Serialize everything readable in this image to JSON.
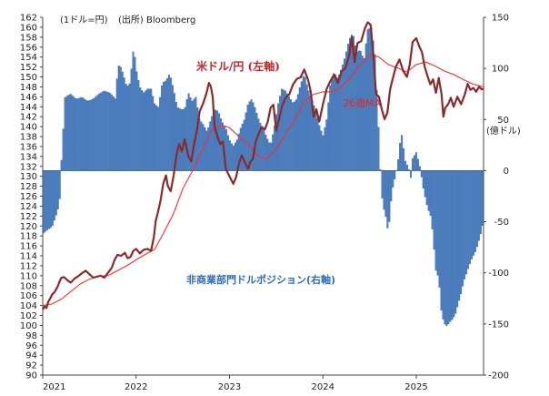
{
  "chart_data": {
    "type": "line",
    "notes": {
      "unit_left": "(1ドル=円)",
      "source": "(出所) Bloomberg",
      "unit_right": "(億ドル)"
    },
    "x_labels": [
      "2021",
      "2022",
      "2023",
      "2024",
      "2025"
    ],
    "x_range": [
      2021.0,
      2025.72
    ],
    "left_axis": {
      "min": 90,
      "max": 162,
      "step": 2
    },
    "right_axis": {
      "min": -200,
      "max": 150,
      "ticks": [
        150,
        100,
        50,
        0,
        -50,
        -100,
        -150,
        -200
      ]
    },
    "colors": {
      "usdjpy": "#8b2a2a",
      "ma": "#ff2a2a",
      "position": "#4a7fc4",
      "position_edge": "#2e5e9c"
    },
    "labels": {
      "usdjpy": "米ドル/円 (左軸)",
      "ma": "26週MA",
      "position": "非商業部門ドルポジション(右軸)"
    },
    "usdjpy": [
      [
        2021.0,
        103.2
      ],
      [
        2021.02,
        103.8
      ],
      [
        2021.04,
        103.5
      ],
      [
        2021.06,
        104.8
      ],
      [
        2021.08,
        105.4
      ],
      [
        2021.1,
        106.2
      ],
      [
        2021.13,
        106.8
      ],
      [
        2021.16,
        107.8
      ],
      [
        2021.18,
        108.8
      ],
      [
        2021.2,
        109.6
      ],
      [
        2021.23,
        109.7
      ],
      [
        2021.27,
        109.0
      ],
      [
        2021.3,
        108.6
      ],
      [
        2021.34,
        109.4
      ],
      [
        2021.38,
        109.9
      ],
      [
        2021.42,
        110.5
      ],
      [
        2021.46,
        111.0
      ],
      [
        2021.5,
        110.3
      ],
      [
        2021.54,
        109.6
      ],
      [
        2021.58,
        109.8
      ],
      [
        2021.62,
        110.0
      ],
      [
        2021.66,
        109.6
      ],
      [
        2021.7,
        110.6
      ],
      [
        2021.74,
        111.6
      ],
      [
        2021.77,
        113.2
      ],
      [
        2021.8,
        114.2
      ],
      [
        2021.84,
        114.0
      ],
      [
        2021.88,
        114.6
      ],
      [
        2021.91,
        113.5
      ],
      [
        2021.94,
        113.8
      ],
      [
        2021.97,
        115.0
      ],
      [
        2022.0,
        115.4
      ],
      [
        2022.04,
        114.5
      ],
      [
        2022.08,
        115.2
      ],
      [
        2022.12,
        115.4
      ],
      [
        2022.16,
        115.0
      ],
      [
        2022.19,
        117.8
      ],
      [
        2022.21,
        121.0
      ],
      [
        2022.23,
        122.5
      ],
      [
        2022.26,
        125.0
      ],
      [
        2022.29,
        128.5
      ],
      [
        2022.32,
        130.2
      ],
      [
        2022.34,
        128.0
      ],
      [
        2022.37,
        127.0
      ],
      [
        2022.4,
        130.0
      ],
      [
        2022.43,
        134.0
      ],
      [
        2022.46,
        136.5
      ],
      [
        2022.49,
        135.0
      ],
      [
        2022.52,
        137.5
      ],
      [
        2022.56,
        134.0
      ],
      [
        2022.59,
        133.0
      ],
      [
        2022.62,
        136.5
      ],
      [
        2022.65,
        139.0
      ],
      [
        2022.68,
        143.0
      ],
      [
        2022.72,
        144.8
      ],
      [
        2022.75,
        146.5
      ],
      [
        2022.78,
        148.8
      ],
      [
        2022.8,
        148.0
      ],
      [
        2022.82,
        146.0
      ],
      [
        2022.84,
        140.0
      ],
      [
        2022.87,
        138.0
      ],
      [
        2022.9,
        136.5
      ],
      [
        2022.93,
        137.0
      ],
      [
        2022.96,
        131.5
      ],
      [
        2023.0,
        130.0
      ],
      [
        2023.04,
        128.5
      ],
      [
        2023.07,
        129.8
      ],
      [
        2023.1,
        132.5
      ],
      [
        2023.13,
        134.2
      ],
      [
        2023.16,
        133.0
      ],
      [
        2023.2,
        131.5
      ],
      [
        2023.22,
        132.8
      ],
      [
        2023.25,
        133.5
      ],
      [
        2023.28,
        137.0
      ],
      [
        2023.31,
        138.5
      ],
      [
        2023.34,
        139.8
      ],
      [
        2023.38,
        139.5
      ],
      [
        2023.41,
        141.0
      ],
      [
        2023.44,
        143.8
      ],
      [
        2023.47,
        144.4
      ],
      [
        2023.5,
        139.2
      ],
      [
        2023.53,
        141.5
      ],
      [
        2023.56,
        144.0
      ],
      [
        2023.6,
        145.8
      ],
      [
        2023.64,
        146.5
      ],
      [
        2023.68,
        148.5
      ],
      [
        2023.72,
        149.6
      ],
      [
        2023.76,
        149.9
      ],
      [
        2023.8,
        151.5
      ],
      [
        2023.84,
        149.5
      ],
      [
        2023.87,
        147.0
      ],
      [
        2023.9,
        142.0
      ],
      [
        2023.93,
        143.5
      ],
      [
        2023.96,
        141.0
      ],
      [
        2024.0,
        144.5
      ],
      [
        2024.04,
        147.6
      ],
      [
        2024.08,
        149.2
      ],
      [
        2024.12,
        150.5
      ],
      [
        2024.16,
        148.8
      ],
      [
        2024.2,
        151.2
      ],
      [
        2024.24,
        151.7
      ],
      [
        2024.28,
        154.2
      ],
      [
        2024.31,
        158.0
      ],
      [
        2024.34,
        153.0
      ],
      [
        2024.37,
        156.8
      ],
      [
        2024.41,
        157.2
      ],
      [
        2024.45,
        159.8
      ],
      [
        2024.48,
        161.0
      ],
      [
        2024.51,
        160.5
      ],
      [
        2024.54,
        154.5
      ],
      [
        2024.57,
        146.5
      ],
      [
        2024.6,
        146.0
      ],
      [
        2024.63,
        143.5
      ],
      [
        2024.66,
        141.5
      ],
      [
        2024.69,
        142.8
      ],
      [
        2024.72,
        147.5
      ],
      [
        2024.75,
        149.8
      ],
      [
        2024.78,
        152.0
      ],
      [
        2024.82,
        153.5
      ],
      [
        2024.86,
        151.2
      ],
      [
        2024.9,
        150.0
      ],
      [
        2024.93,
        152.5
      ],
      [
        2024.96,
        157.0
      ],
      [
        2025.0,
        157.8
      ],
      [
        2025.03,
        156.2
      ],
      [
        2025.06,
        155.0
      ],
      [
        2025.09,
        152.0
      ],
      [
        2025.12,
        150.2
      ],
      [
        2025.15,
        148.5
      ],
      [
        2025.18,
        149.5
      ],
      [
        2025.21,
        146.8
      ],
      [
        2025.24,
        149.8
      ],
      [
        2025.27,
        146.5
      ],
      [
        2025.29,
        142.0
      ],
      [
        2025.31,
        143.8
      ],
      [
        2025.34,
        144.5
      ],
      [
        2025.37,
        145.8
      ],
      [
        2025.4,
        144.0
      ],
      [
        2025.44,
        146.0
      ],
      [
        2025.48,
        144.5
      ],
      [
        2025.52,
        146.5
      ],
      [
        2025.55,
        148.6
      ],
      [
        2025.58,
        147.4
      ],
      [
        2025.61,
        147.8
      ],
      [
        2025.64,
        147.0
      ],
      [
        2025.67,
        148.0
      ],
      [
        2025.7,
        147.5
      ],
      [
        2025.72,
        147.6
      ]
    ],
    "ma": [
      [
        2021.0,
        104.0
      ],
      [
        2021.1,
        104.3
      ],
      [
        2021.2,
        105.3
      ],
      [
        2021.3,
        106.8
      ],
      [
        2021.4,
        108.3
      ],
      [
        2021.5,
        109.3
      ],
      [
        2021.6,
        109.9
      ],
      [
        2021.7,
        110.0
      ],
      [
        2021.8,
        111.0
      ],
      [
        2021.9,
        112.0
      ],
      [
        2022.0,
        113.2
      ],
      [
        2022.1,
        114.3
      ],
      [
        2022.2,
        115.3
      ],
      [
        2022.3,
        118.8
      ],
      [
        2022.4,
        122.5
      ],
      [
        2022.5,
        127.5
      ],
      [
        2022.6,
        131.0
      ],
      [
        2022.7,
        135.0
      ],
      [
        2022.8,
        139.0
      ],
      [
        2022.9,
        140.3
      ],
      [
        2023.0,
        139.8
      ],
      [
        2023.1,
        138.0
      ],
      [
        2023.2,
        136.5
      ],
      [
        2023.3,
        134.0
      ],
      [
        2023.4,
        133.5
      ],
      [
        2023.5,
        135.5
      ],
      [
        2023.6,
        138.5
      ],
      [
        2023.7,
        141.5
      ],
      [
        2023.8,
        145.0
      ],
      [
        2023.9,
        146.5
      ],
      [
        2024.0,
        147.0
      ],
      [
        2024.1,
        147.0
      ],
      [
        2024.2,
        148.0
      ],
      [
        2024.3,
        150.0
      ],
      [
        2024.4,
        152.5
      ],
      [
        2024.5,
        154.5
      ],
      [
        2024.6,
        154.0
      ],
      [
        2024.7,
        152.5
      ],
      [
        2024.8,
        151.8
      ],
      [
        2024.9,
        151.0
      ],
      [
        2025.0,
        152.5
      ],
      [
        2025.1,
        153.0
      ],
      [
        2025.2,
        152.2
      ],
      [
        2025.3,
        151.2
      ],
      [
        2025.4,
        150.5
      ],
      [
        2025.5,
        149.5
      ],
      [
        2025.6,
        148.6
      ],
      [
        2025.72,
        148.0
      ]
    ],
    "positions": [
      [
        2021.0,
        -62
      ],
      [
        2021.05,
        -58
      ],
      [
        2021.1,
        -55
      ],
      [
        2021.15,
        -42
      ],
      [
        2021.18,
        -32
      ],
      [
        2021.2,
        8
      ],
      [
        2021.24,
        72
      ],
      [
        2021.3,
        75
      ],
      [
        2021.36,
        70
      ],
      [
        2021.42,
        72
      ],
      [
        2021.48,
        68
      ],
      [
        2021.54,
        70
      ],
      [
        2021.6,
        75
      ],
      [
        2021.66,
        78
      ],
      [
        2021.72,
        76
      ],
      [
        2021.78,
        70
      ],
      [
        2021.8,
        95
      ],
      [
        2021.82,
        105
      ],
      [
        2021.86,
        95
      ],
      [
        2021.9,
        82
      ],
      [
        2021.94,
        86
      ],
      [
        2021.96,
        115
      ],
      [
        2021.98,
        118
      ],
      [
        2022.0,
        100
      ],
      [
        2022.04,
        82
      ],
      [
        2022.08,
        76
      ],
      [
        2022.12,
        80
      ],
      [
        2022.16,
        80
      ],
      [
        2022.2,
        65
      ],
      [
        2022.24,
        62
      ],
      [
        2022.28,
        86
      ],
      [
        2022.32,
        88
      ],
      [
        2022.36,
        95
      ],
      [
        2022.4,
        80
      ],
      [
        2022.44,
        62
      ],
      [
        2022.48,
        60
      ],
      [
        2022.52,
        60
      ],
      [
        2022.56,
        76
      ],
      [
        2022.6,
        68
      ],
      [
        2022.64,
        72
      ],
      [
        2022.68,
        50
      ],
      [
        2022.72,
        45
      ],
      [
        2022.76,
        38
      ],
      [
        2022.8,
        50
      ],
      [
        2022.84,
        60
      ],
      [
        2022.88,
        58
      ],
      [
        2022.92,
        48
      ],
      [
        2022.96,
        42
      ],
      [
        2023.0,
        30
      ],
      [
        2023.04,
        24
      ],
      [
        2023.08,
        30
      ],
      [
        2023.12,
        42
      ],
      [
        2023.16,
        50
      ],
      [
        2023.2,
        66
      ],
      [
        2023.24,
        70
      ],
      [
        2023.28,
        60
      ],
      [
        2023.32,
        48
      ],
      [
        2023.36,
        42
      ],
      [
        2023.4,
        32
      ],
      [
        2023.44,
        25
      ],
      [
        2023.48,
        42
      ],
      [
        2023.52,
        65
      ],
      [
        2023.56,
        80
      ],
      [
        2023.6,
        78
      ],
      [
        2023.64,
        72
      ],
      [
        2023.68,
        66
      ],
      [
        2023.72,
        70
      ],
      [
        2023.76,
        84
      ],
      [
        2023.8,
        95
      ],
      [
        2023.84,
        80
      ],
      [
        2023.88,
        70
      ],
      [
        2023.92,
        60
      ],
      [
        2023.96,
        45
      ],
      [
        2024.0,
        34
      ],
      [
        2024.04,
        50
      ],
      [
        2024.08,
        85
      ],
      [
        2024.12,
        96
      ],
      [
        2024.16,
        90
      ],
      [
        2024.2,
        100
      ],
      [
        2024.24,
        112
      ],
      [
        2024.28,
        128
      ],
      [
        2024.32,
        135
      ],
      [
        2024.36,
        116
      ],
      [
        2024.4,
        118
      ],
      [
        2024.44,
        108
      ],
      [
        2024.48,
        138
      ],
      [
        2024.52,
        140
      ],
      [
        2024.56,
        112
      ],
      [
        2024.58,
        72
      ],
      [
        2024.6,
        35
      ],
      [
        2024.62,
        -10
      ],
      [
        2024.64,
        -34
      ],
      [
        2024.66,
        -40
      ],
      [
        2024.68,
        -48
      ],
      [
        2024.7,
        -62
      ],
      [
        2024.72,
        -40
      ],
      [
        2024.74,
        -20
      ],
      [
        2024.76,
        -12
      ],
      [
        2024.8,
        5
      ],
      [
        2024.82,
        22
      ],
      [
        2024.84,
        38
      ],
      [
        2024.86,
        25
      ],
      [
        2024.88,
        10
      ],
      [
        2024.92,
        2
      ],
      [
        2024.94,
        -8
      ],
      [
        2024.96,
        12
      ],
      [
        2025.0,
        18
      ],
      [
        2025.04,
        3
      ],
      [
        2025.08,
        -20
      ],
      [
        2025.12,
        -36
      ],
      [
        2025.16,
        -46
      ],
      [
        2025.18,
        -66
      ],
      [
        2025.21,
        -98
      ],
      [
        2025.24,
        -105
      ],
      [
        2025.27,
        -140
      ],
      [
        2025.3,
        -150
      ],
      [
        2025.33,
        -152
      ],
      [
        2025.36,
        -148
      ],
      [
        2025.39,
        -145
      ],
      [
        2025.42,
        -140
      ],
      [
        2025.45,
        -130
      ],
      [
        2025.48,
        -120
      ],
      [
        2025.51,
        -108
      ],
      [
        2025.54,
        -100
      ],
      [
        2025.57,
        -92
      ],
      [
        2025.6,
        -85
      ],
      [
        2025.63,
        -80
      ],
      [
        2025.66,
        -72
      ],
      [
        2025.7,
        -58
      ],
      [
        2025.72,
        -48
      ]
    ]
  }
}
